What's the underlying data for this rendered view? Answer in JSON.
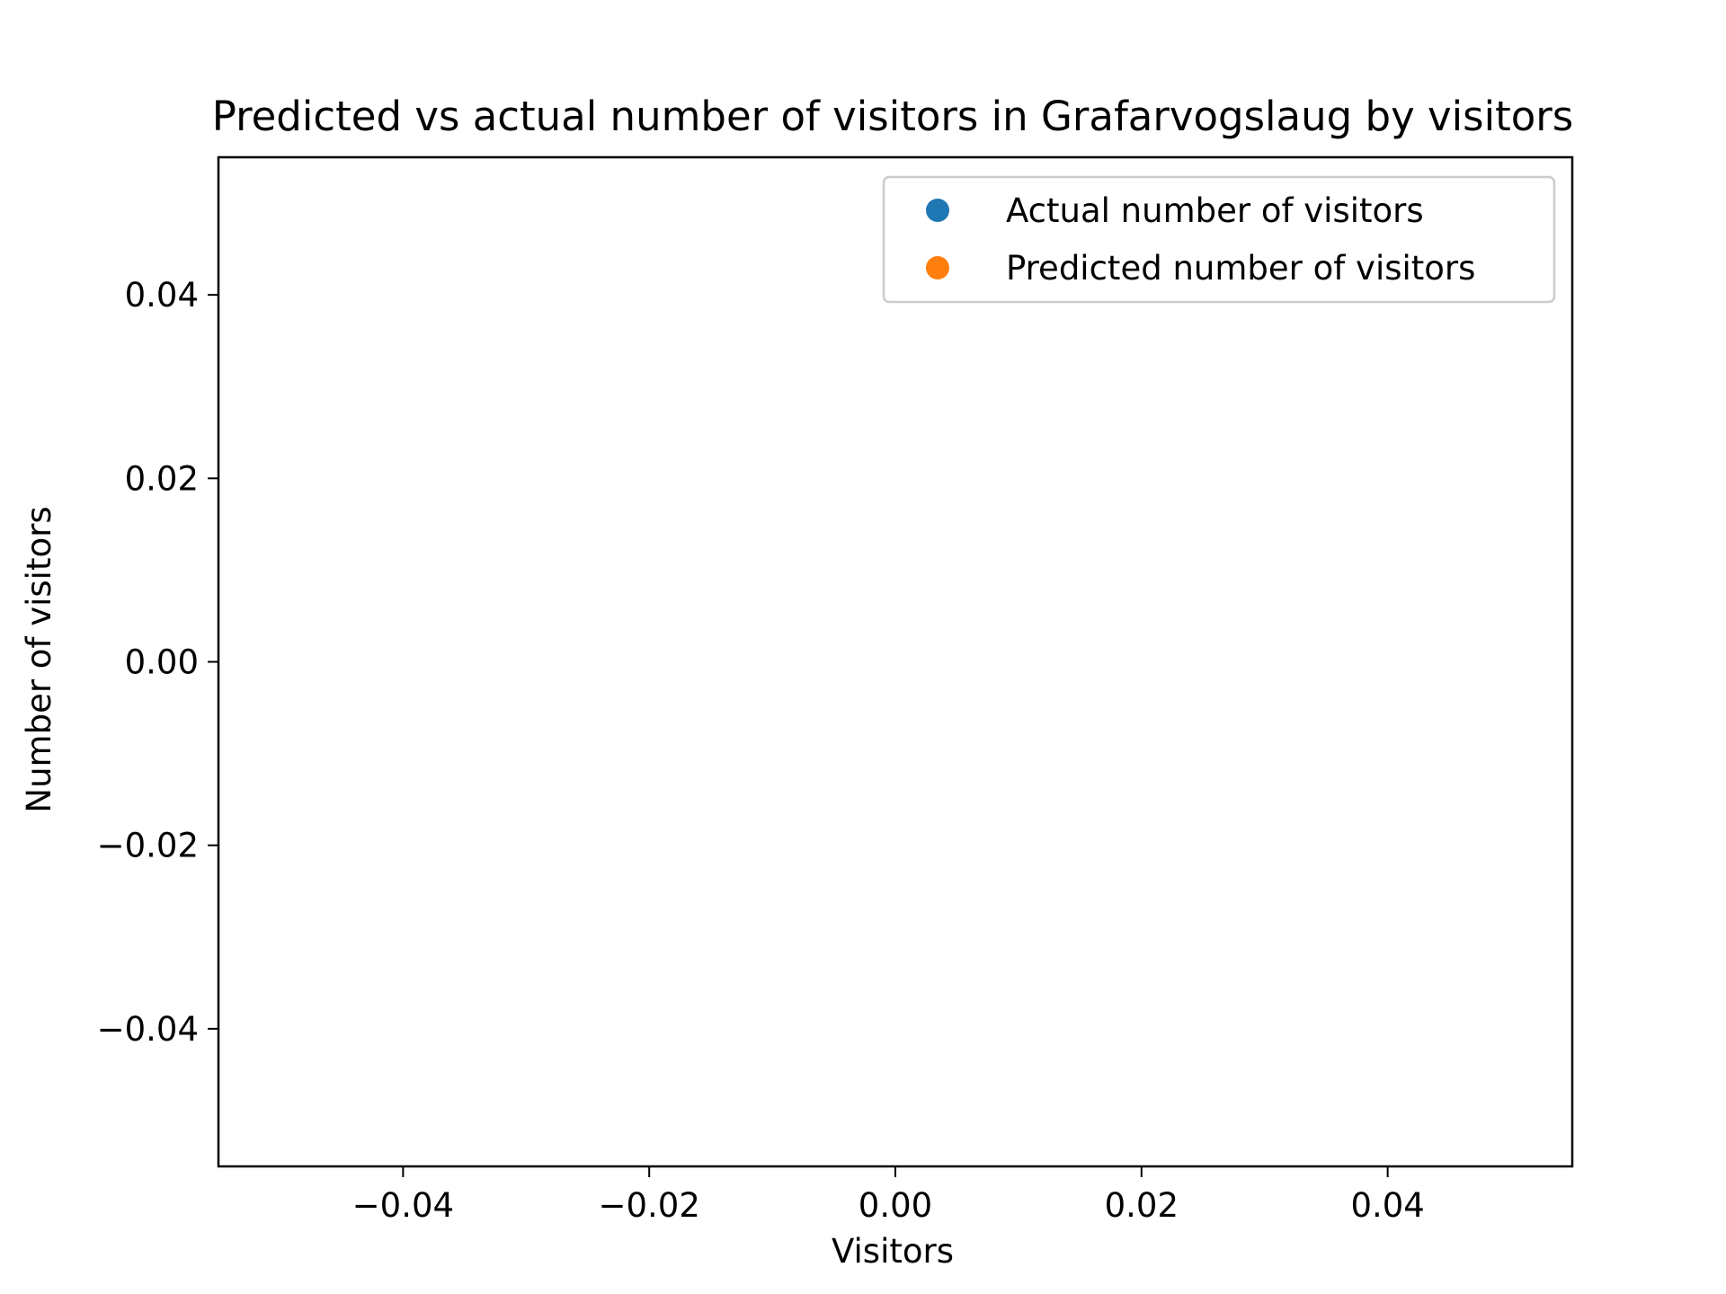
{
  "chart_data": {
    "type": "scatter",
    "title": "Predicted vs actual number of visitors in Grafarvogslaug by visitors",
    "xlabel": "Visitors",
    "ylabel": "Number of visitors",
    "xlim": [
      -0.055,
      0.055
    ],
    "ylim": [
      -0.055,
      0.055
    ],
    "xticks": [
      -0.04,
      -0.02,
      0.0,
      0.02,
      0.04
    ],
    "yticks": [
      -0.04,
      -0.02,
      0.0,
      0.02,
      0.04
    ],
    "xtick_labels": [
      "−0.04",
      "−0.02",
      "0.00",
      "0.02",
      "0.04"
    ],
    "ytick_labels": [
      "−0.04",
      "−0.02",
      "0.00",
      "0.02",
      "0.04"
    ],
    "grid": false,
    "legend_position": "top-right",
    "series": [
      {
        "name": "Actual number of visitors",
        "color": "#1f77b4",
        "marker": "circle",
        "x": [],
        "y": []
      },
      {
        "name": "Predicted number of visitors",
        "color": "#ff7f0e",
        "marker": "circle",
        "x": [],
        "y": []
      }
    ]
  }
}
